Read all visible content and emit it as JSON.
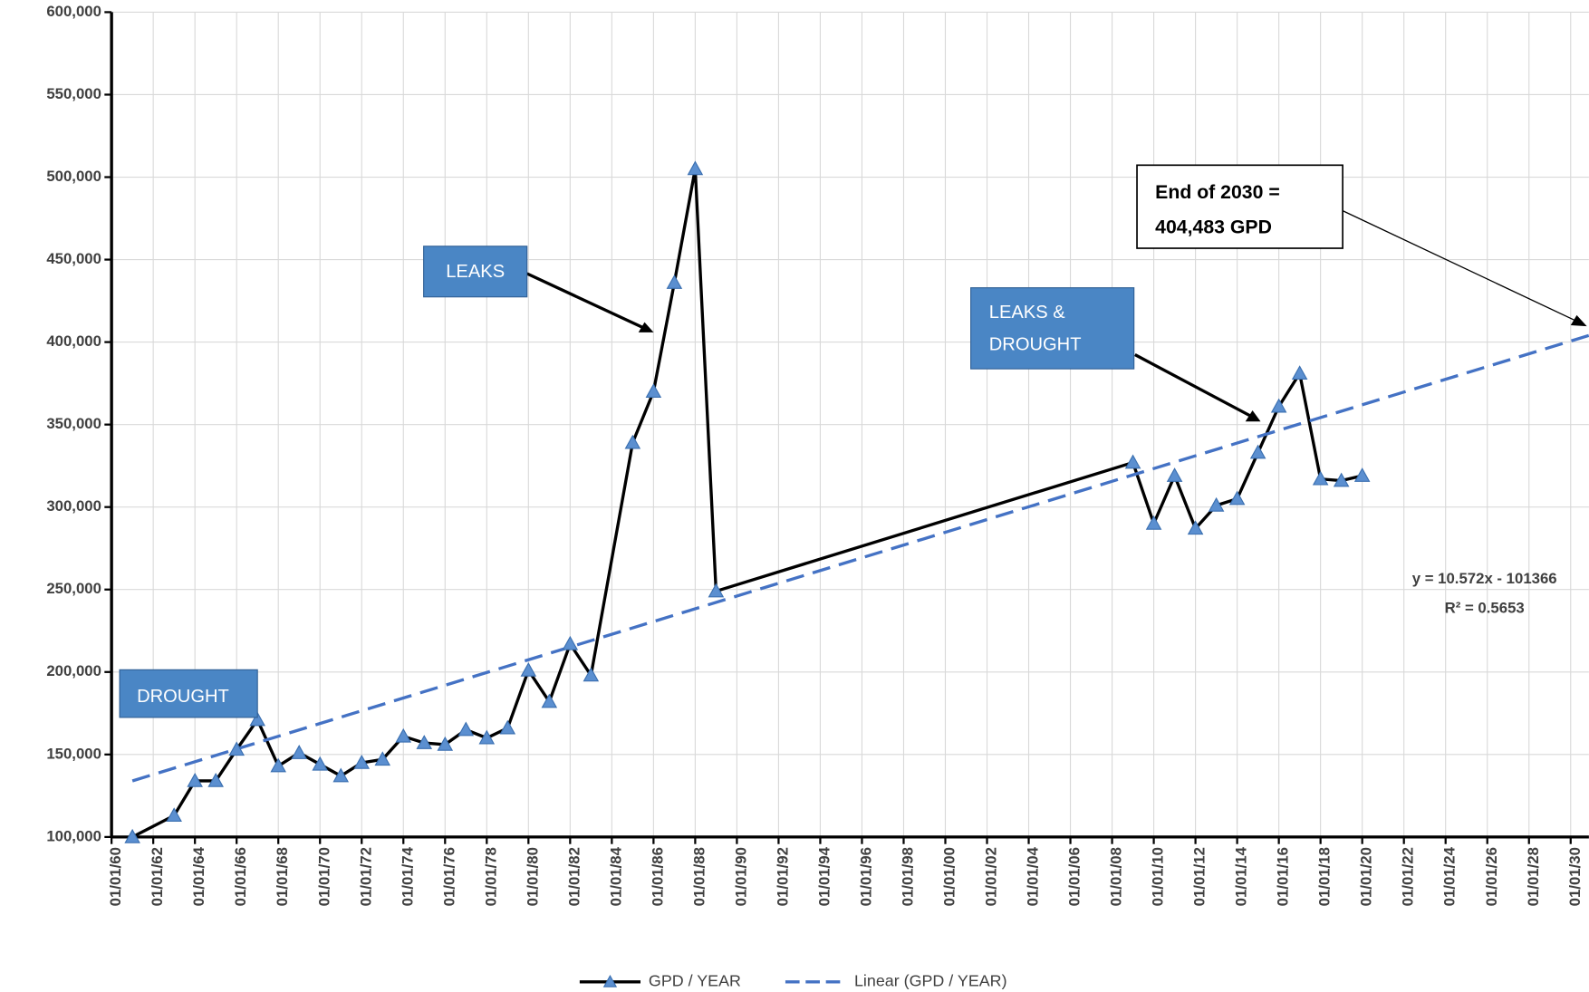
{
  "chart_data": {
    "type": "line",
    "xlim": [
      1960,
      2031
    ],
    "xticks": [
      {
        "value": 1960,
        "label": "01/01/60"
      },
      {
        "value": 1962,
        "label": "01/01/62"
      },
      {
        "value": 1964,
        "label": "01/01/64"
      },
      {
        "value": 1966,
        "label": "01/01/66"
      },
      {
        "value": 1968,
        "label": "01/01/68"
      },
      {
        "value": 1970,
        "label": "01/01/70"
      },
      {
        "value": 1972,
        "label": "01/01/72"
      },
      {
        "value": 1974,
        "label": "01/01/74"
      },
      {
        "value": 1976,
        "label": "01/01/76"
      },
      {
        "value": 1978,
        "label": "01/01/78"
      },
      {
        "value": 1980,
        "label": "01/01/80"
      },
      {
        "value": 1982,
        "label": "01/01/82"
      },
      {
        "value": 1984,
        "label": "01/01/84"
      },
      {
        "value": 1986,
        "label": "01/01/86"
      },
      {
        "value": 1988,
        "label": "01/01/88"
      },
      {
        "value": 1990,
        "label": "01/01/90"
      },
      {
        "value": 1992,
        "label": "01/01/92"
      },
      {
        "value": 1994,
        "label": "01/01/94"
      },
      {
        "value": 1996,
        "label": "01/01/96"
      },
      {
        "value": 1998,
        "label": "01/01/98"
      },
      {
        "value": 2000,
        "label": "01/01/00"
      },
      {
        "value": 2002,
        "label": "01/01/02"
      },
      {
        "value": 2004,
        "label": "01/01/04"
      },
      {
        "value": 2006,
        "label": "01/01/06"
      },
      {
        "value": 2008,
        "label": "01/01/08"
      },
      {
        "value": 2010,
        "label": "01/01/10"
      },
      {
        "value": 2012,
        "label": "01/01/12"
      },
      {
        "value": 2014,
        "label": "01/01/14"
      },
      {
        "value": 2016,
        "label": "01/01/16"
      },
      {
        "value": 2018,
        "label": "01/01/18"
      },
      {
        "value": 2020,
        "label": "01/01/20"
      },
      {
        "value": 2022,
        "label": "01/01/22"
      },
      {
        "value": 2024,
        "label": "01/01/24"
      },
      {
        "value": 2026,
        "label": "01/01/26"
      },
      {
        "value": 2028,
        "label": "01/01/28"
      },
      {
        "value": 2030,
        "label": "01/01/30"
      }
    ],
    "ylim": [
      100000,
      600000
    ],
    "yticks": [
      {
        "value": 100000,
        "label": "100,000"
      },
      {
        "value": 150000,
        "label": "150,000"
      },
      {
        "value": 200000,
        "label": "200,000"
      },
      {
        "value": 250000,
        "label": "250,000"
      },
      {
        "value": 300000,
        "label": "300,000"
      },
      {
        "value": 350000,
        "label": "350,000"
      },
      {
        "value": 400000,
        "label": "400,000"
      },
      {
        "value": 450000,
        "label": "450,000"
      },
      {
        "value": 500000,
        "label": "500,000"
      },
      {
        "value": 550000,
        "label": "550,000"
      },
      {
        "value": 600000,
        "label": "600,000"
      }
    ],
    "grid": true,
    "series": [
      {
        "name": "GPD / YEAR",
        "color": "#000000",
        "marker": "triangle",
        "marker_color": "#5b8fd0",
        "x": [
          1961,
          1963,
          1964,
          1965,
          1966,
          1967,
          1968,
          1969,
          1970,
          1971,
          1972,
          1973,
          1974,
          1975,
          1976,
          1977,
          1978,
          1979,
          1980,
          1981,
          1982,
          1983,
          1985,
          1986,
          1987,
          1988,
          1989,
          2009,
          2010,
          2011,
          2012,
          2013,
          2014,
          2015,
          2016,
          2017,
          2018,
          2019,
          2020
        ],
        "values": [
          100000,
          113000,
          134000,
          134000,
          153000,
          171000,
          143000,
          151000,
          144000,
          137000,
          145000,
          147000,
          161000,
          157000,
          156000,
          165000,
          160000,
          166000,
          201000,
          182000,
          217000,
          198000,
          339000,
          370000,
          436000,
          505000,
          249000,
          327000,
          290000,
          319000,
          287000,
          301000,
          305000,
          333000,
          361000,
          381000,
          317000,
          316000,
          319000
        ]
      },
      {
        "name": "Linear (GPD / YEAR)",
        "color": "#4472c4",
        "dashed": true,
        "x": [
          1961,
          2031
        ],
        "values": [
          134000,
          404483
        ]
      }
    ],
    "annotations": {
      "leaks": "LEAKS",
      "leaks_drought": [
        "LEAKS &",
        "DROUGHT"
      ],
      "drought": "DROUGHT",
      "end_2030": [
        "End  of 2030 =",
        "404,483 GPD"
      ],
      "equation": "y = 10.572x - 101366",
      "r_squared": "R² = 0.5653"
    }
  }
}
